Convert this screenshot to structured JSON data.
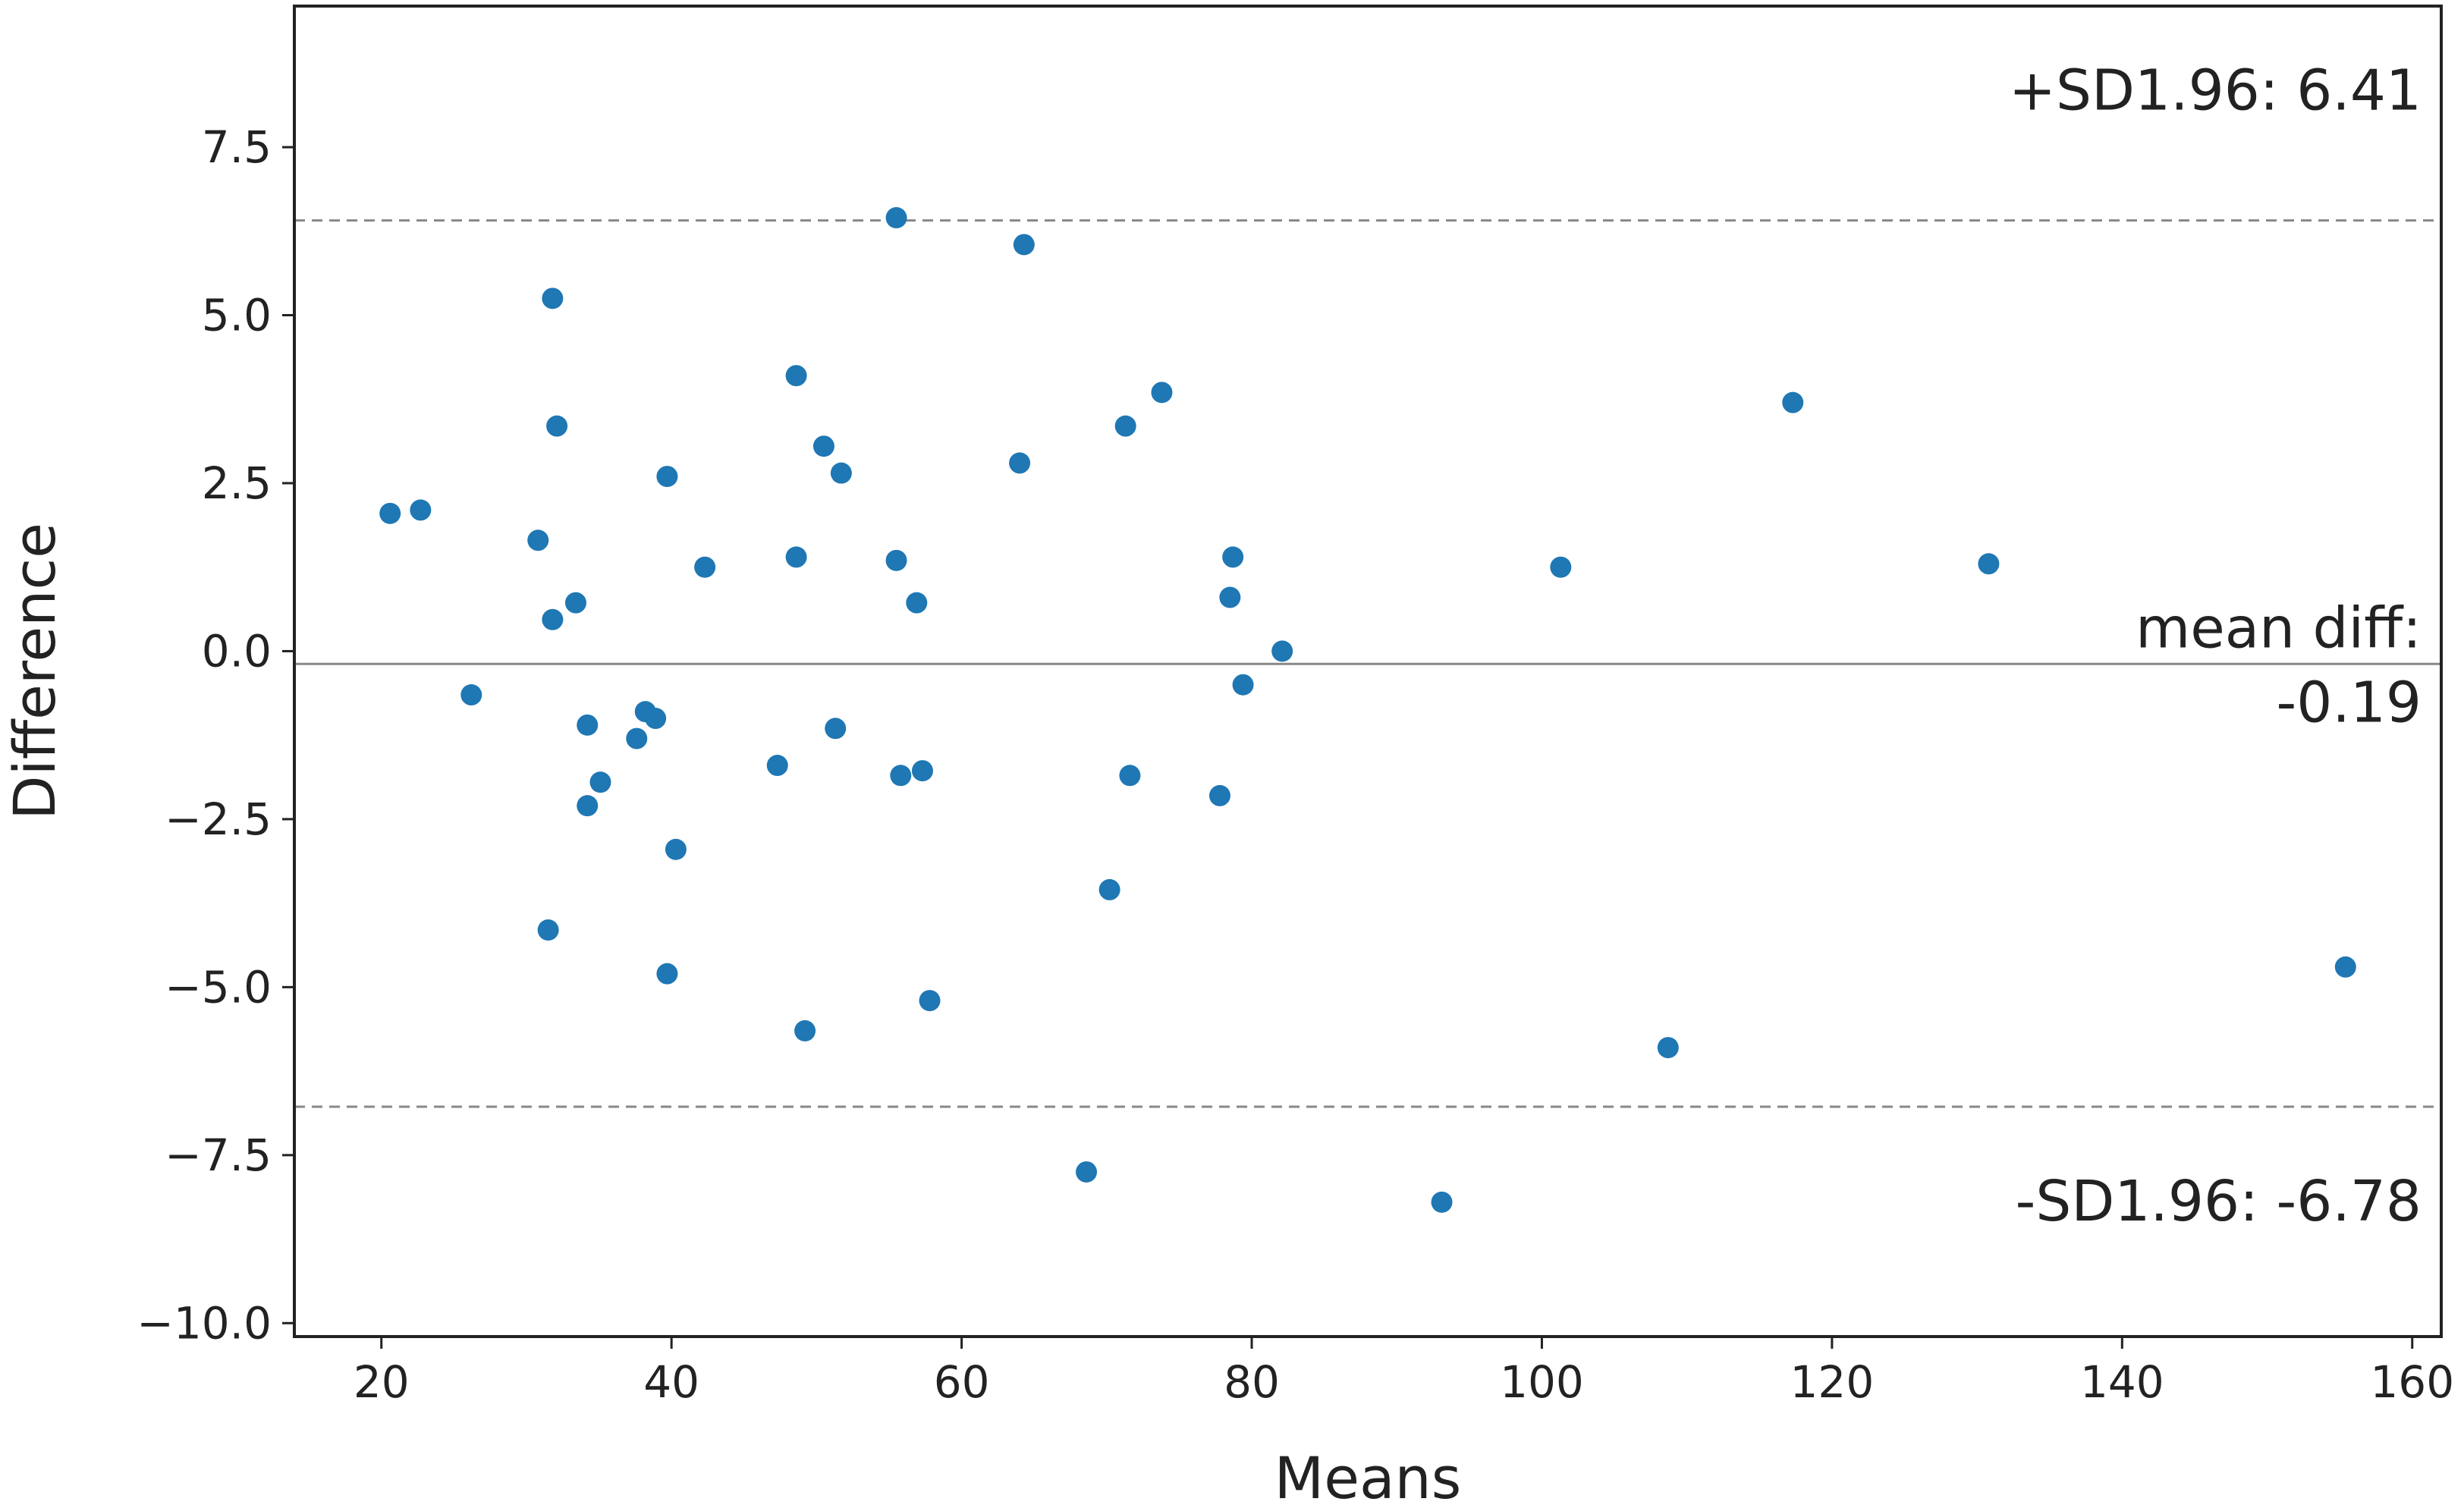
{
  "chart_data": {
    "type": "scatter",
    "title": "",
    "xlabel": "Means",
    "ylabel": "Difference",
    "xlim": [
      14,
      162
    ],
    "ylim": [
      -10.2,
      9.6
    ],
    "xticks": [
      20,
      40,
      60,
      80,
      100,
      120,
      140,
      160
    ],
    "xtick_labels": [
      "20",
      "40",
      "60",
      "80",
      "100",
      "120",
      "140",
      "160"
    ],
    "yticks": [
      7.5,
      5.0,
      2.5,
      0.0,
      -2.5,
      -5.0,
      -7.5,
      -10.0
    ],
    "ytick_labels": [
      "7.5",
      "5.0",
      "2.5",
      "0.0",
      "−2.5",
      "−5.0",
      "−7.5",
      "−10.0"
    ],
    "grid": false,
    "point_color": "#1f77b4",
    "reference_lines": [
      {
        "name": "upper-limit",
        "y": 6.41,
        "style": "dashed",
        "color": "#888888"
      },
      {
        "name": "mean-diff",
        "y": -0.19,
        "style": "solid",
        "color": "#888888"
      },
      {
        "name": "lower-limit",
        "y": -6.78,
        "style": "dashed",
        "color": "#888888"
      }
    ],
    "annotations": {
      "upper": "+SD1.96: 6.41",
      "mean_line1": "mean diff:",
      "mean_line2": "-0.19",
      "lower": "-SD1.96: -6.78"
    },
    "points": [
      {
        "x": 20.6,
        "y": 2.05
      },
      {
        "x": 22.7,
        "y": 2.1
      },
      {
        "x": 26.2,
        "y": -0.65
      },
      {
        "x": 30.8,
        "y": 1.65
      },
      {
        "x": 31.5,
        "y": -4.15
      },
      {
        "x": 31.8,
        "y": 5.25
      },
      {
        "x": 31.8,
        "y": 0.47
      },
      {
        "x": 32.1,
        "y": 3.35
      },
      {
        "x": 33.4,
        "y": 0.72
      },
      {
        "x": 34.2,
        "y": -1.1
      },
      {
        "x": 34.2,
        "y": -2.3
      },
      {
        "x": 35.1,
        "y": -1.95
      },
      {
        "x": 37.6,
        "y": -1.3
      },
      {
        "x": 38.2,
        "y": -0.9
      },
      {
        "x": 38.9,
        "y": -1.0
      },
      {
        "x": 39.7,
        "y": 2.6
      },
      {
        "x": 39.7,
        "y": -4.8
      },
      {
        "x": 40.3,
        "y": -2.95
      },
      {
        "x": 42.3,
        "y": 1.25
      },
      {
        "x": 47.3,
        "y": -1.7
      },
      {
        "x": 48.6,
        "y": 4.1
      },
      {
        "x": 48.6,
        "y": 1.4
      },
      {
        "x": 49.2,
        "y": -5.65
      },
      {
        "x": 50.5,
        "y": 3.05
      },
      {
        "x": 51.3,
        "y": -1.15
      },
      {
        "x": 51.7,
        "y": 2.65
      },
      {
        "x": 55.5,
        "y": 6.45
      },
      {
        "x": 55.5,
        "y": 1.35
      },
      {
        "x": 55.8,
        "y": -1.85
      },
      {
        "x": 56.9,
        "y": 0.72
      },
      {
        "x": 57.3,
        "y": -1.78
      },
      {
        "x": 57.8,
        "y": -5.2
      },
      {
        "x": 64.0,
        "y": 2.8
      },
      {
        "x": 64.3,
        "y": 6.05
      },
      {
        "x": 68.6,
        "y": -7.75
      },
      {
        "x": 70.2,
        "y": -3.55
      },
      {
        "x": 71.3,
        "y": 3.35
      },
      {
        "x": 71.6,
        "y": -1.85
      },
      {
        "x": 73.8,
        "y": 3.85
      },
      {
        "x": 77.8,
        "y": -2.15
      },
      {
        "x": 78.5,
        "y": 0.8
      },
      {
        "x": 78.7,
        "y": 1.4
      },
      {
        "x": 79.4,
        "y": -0.5
      },
      {
        "x": 82.1,
        "y": 0.0
      },
      {
        "x": 93.1,
        "y": -8.2
      },
      {
        "x": 101.3,
        "y": 1.25
      },
      {
        "x": 108.7,
        "y": -5.9
      },
      {
        "x": 117.3,
        "y": 3.7
      },
      {
        "x": 130.8,
        "y": 1.3
      },
      {
        "x": 155.4,
        "y": -4.7
      }
    ]
  }
}
